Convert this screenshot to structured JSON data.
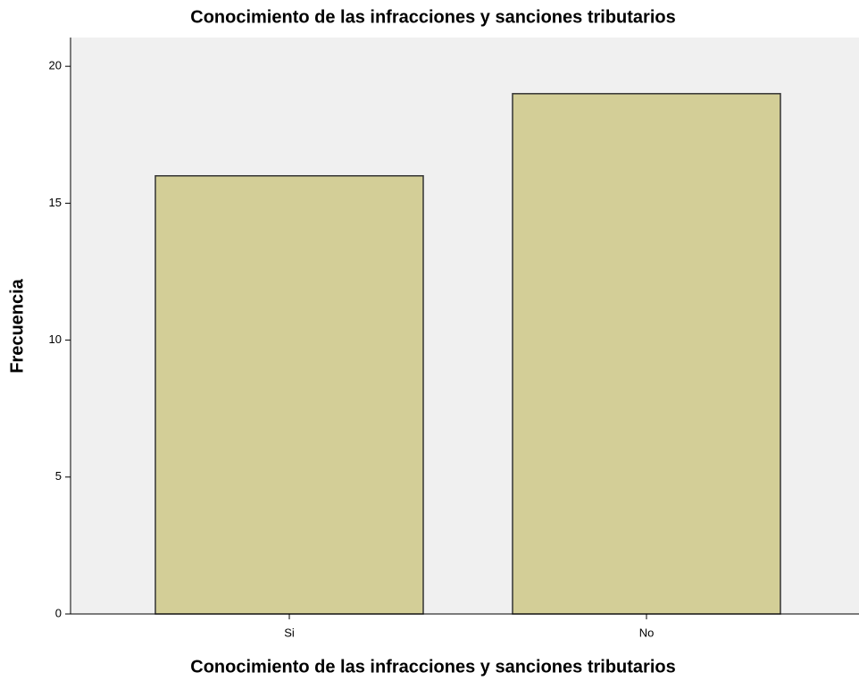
{
  "chart_data": {
    "type": "bar",
    "title": "Conocimiento de las infracciones y sanciones tributarios",
    "x_label": "Conocimiento de las infracciones y sanciones tributarios",
    "y_label": "Frecuencia",
    "categories": [
      "Si",
      "No"
    ],
    "values": [
      16,
      19
    ],
    "color": "#d3ce97",
    "ylim": [
      0,
      21.05
    ],
    "yticks": [
      0,
      5,
      10,
      15,
      20
    ],
    "grid": false
  }
}
